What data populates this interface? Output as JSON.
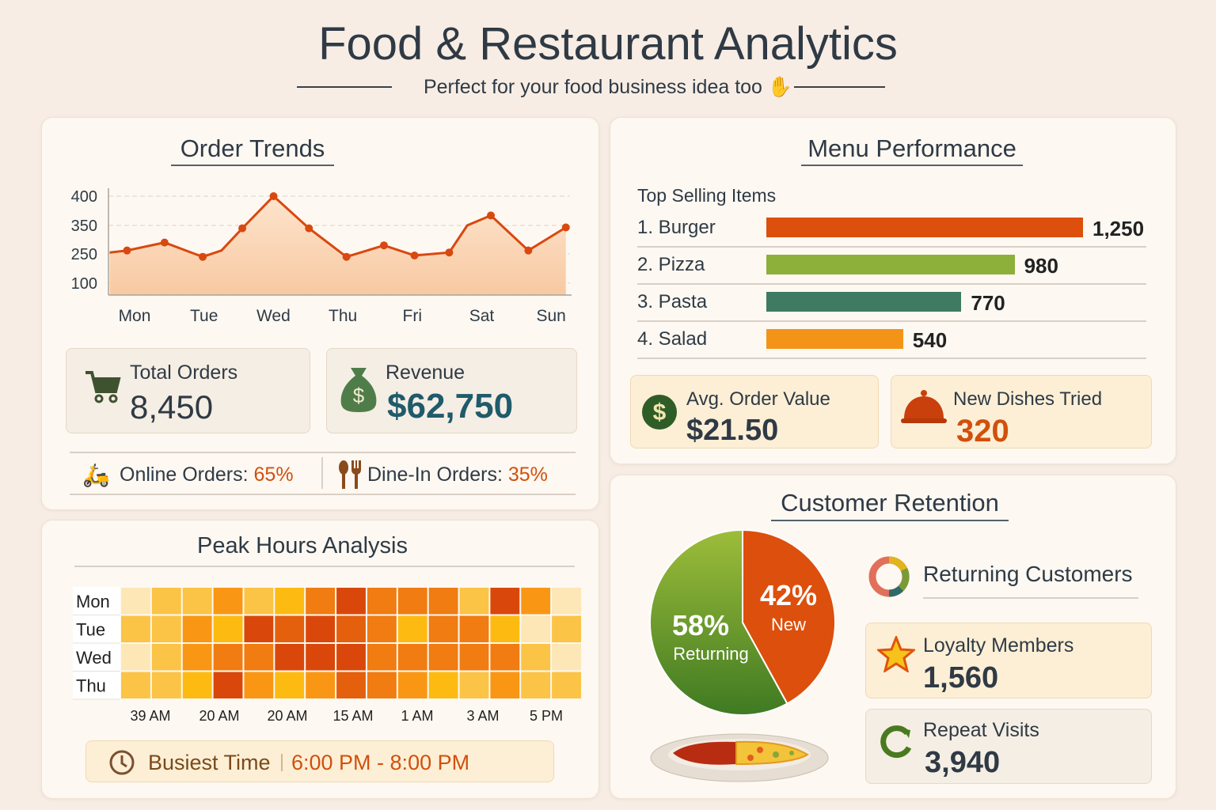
{
  "header": {
    "title": "Food & Restaurant Analytics",
    "subtitle": "Perfect for your food business idea too",
    "subtitle_icon": "raised-hand-icon"
  },
  "order_trends": {
    "title": "Order Trends",
    "chart_data": {
      "type": "line",
      "x_labels": [
        "Mon",
        "Tue",
        "Wed",
        "Thu",
        "Fri",
        "Sat",
        "Sun"
      ],
      "y_ticks": [
        400,
        350,
        250,
        100
      ],
      "points": [
        [
          -0.29,
          255
        ],
        [
          -0.04,
          262
        ],
        [
          0.5,
          290
        ],
        [
          1.05,
          235
        ],
        [
          1.32,
          262
        ],
        [
          1.62,
          340
        ],
        [
          2.07,
          400
        ],
        [
          2.58,
          340
        ],
        [
          3.12,
          235
        ],
        [
          3.66,
          280
        ],
        [
          4.1,
          242
        ],
        [
          4.6,
          255
        ],
        [
          4.86,
          350
        ],
        [
          5.2,
          367
        ],
        [
          5.74,
          262
        ],
        [
          6.28,
          343
        ]
      ],
      "color": "#d9480f"
    },
    "total_orders": {
      "label": "Total Orders",
      "value": "8,450"
    },
    "revenue": {
      "label": "Revenue",
      "value": "$62,750"
    },
    "online": {
      "label": "Online Orders:",
      "value": "65%"
    },
    "dinein": {
      "label": "Dine-In Orders:",
      "value": "35%"
    }
  },
  "peak_hours": {
    "title": "Peak Hours Analysis",
    "chart_data": {
      "type": "heatmap",
      "rows": [
        "Mon",
        "Tue",
        "Wed",
        "Thu"
      ],
      "x_labels": [
        "39 AM",
        "20 AM",
        "20 AM",
        "15 AM",
        "1 AM",
        "3 AM",
        "5 PM"
      ],
      "intensity": [
        [
          0,
          1,
          1,
          3,
          1,
          2,
          4,
          6,
          4,
          4,
          4,
          1,
          6,
          3,
          0
        ],
        [
          1,
          1,
          3,
          2,
          6,
          5,
          6,
          5,
          4,
          2,
          4,
          4,
          2,
          0,
          1
        ],
        [
          0,
          1,
          3,
          4,
          4,
          6,
          6,
          6,
          4,
          4,
          4,
          4,
          4,
          1,
          0
        ],
        [
          1,
          1,
          2,
          6,
          3,
          2,
          3,
          5,
          4,
          3,
          2,
          1,
          3,
          1,
          1
        ]
      ],
      "scale": [
        "#fde7b6",
        "#fbc446",
        "#fdbb12",
        "#f99714",
        "#f07c12",
        "#e4600c",
        "#d9480a"
      ]
    },
    "busiest_label": "Busiest Time",
    "busiest_value": "6:00 PM - 8:00 PM"
  },
  "menu": {
    "title": "Menu Performance",
    "subtitle": "Top Selling Items",
    "chart_data": {
      "type": "bar",
      "categories": [
        "1. Burger",
        "2. Pizza",
        "3. Pasta",
        "4. Salad"
      ],
      "values": [
        1250,
        980,
        770,
        540
      ],
      "labels": [
        "1,250",
        "980",
        "770",
        "540"
      ],
      "colors": [
        "#dd4f0c",
        "#8db03a",
        "#3f7a63",
        "#f39418"
      ]
    },
    "avg_order": {
      "label": "Avg. Order Value",
      "value": "$21.50"
    },
    "new_dishes": {
      "label": "New Dishes Tried",
      "value": "320"
    }
  },
  "retention": {
    "title": "Customer Retention",
    "chart_data": {
      "type": "pie",
      "slices": [
        {
          "name": "New",
          "value": 42,
          "label": "42%",
          "color": "#dd4f0c"
        },
        {
          "name": "Returning",
          "value": 58,
          "label": "58%",
          "color": "#5a8f2a"
        }
      ]
    },
    "returning_label": "Returning Customers",
    "loyalty": {
      "label": "Loyalty Members",
      "value": "1,560"
    },
    "repeat": {
      "label": "Repeat Visits",
      "value": "3,940"
    }
  }
}
